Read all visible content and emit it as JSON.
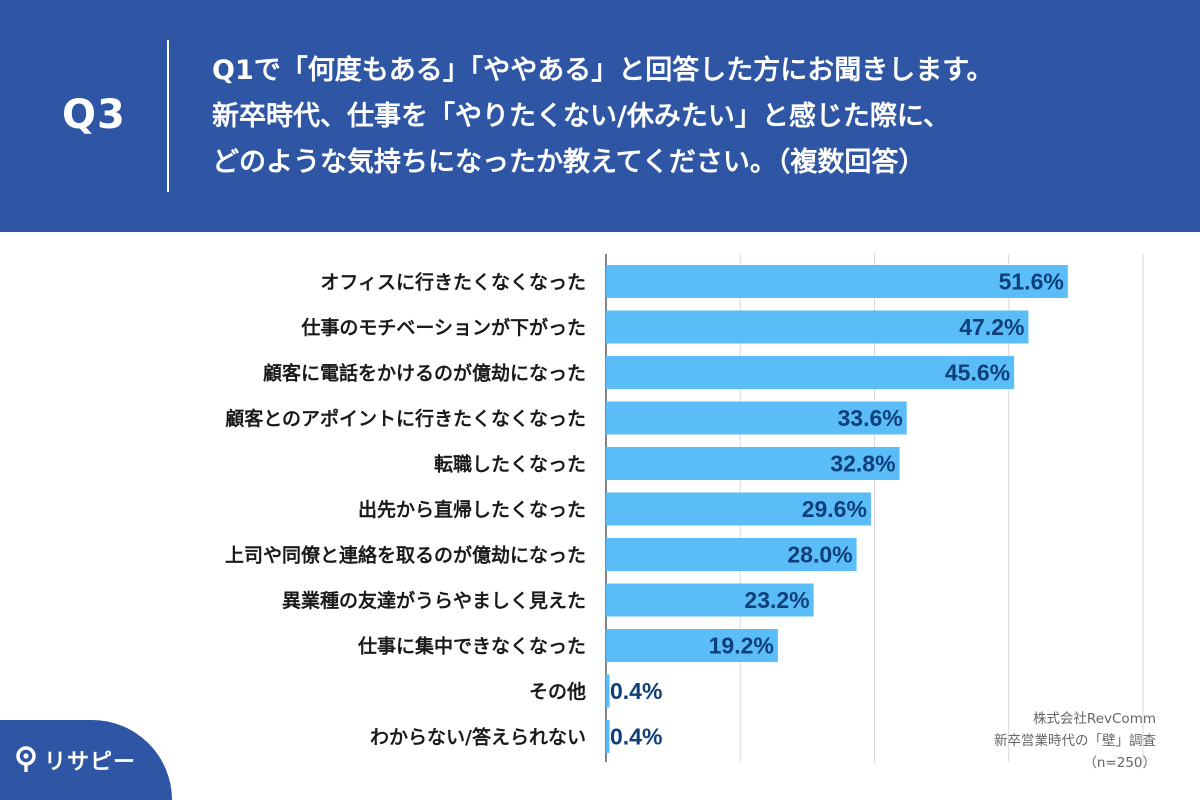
{
  "header": {
    "q_label": "Q3",
    "question_lines": [
      "Q1で「何度もある」「ややある」と回答した方にお聞きします。",
      "新卒時代、仕事を「やりたくない/休みたい」と感じた際に、",
      "どのような気持ちになったか教えてください。（複数回答）"
    ]
  },
  "chart_data": {
    "type": "bar",
    "orientation": "horizontal",
    "title": "",
    "xlabel": "",
    "ylabel": "",
    "xlim": [
      0,
      100
    ],
    "grid": true,
    "categories": [
      "オフィスに行きたくなくなった",
      "仕事のモチベーションが下がった",
      "顧客に電話をかけるのが億劫になった",
      "顧客とのアポイントに行きたくなくなった",
      "転職したくなった",
      "出先から直帰したくなった",
      "上司や同僚と連絡を取るのが億劫になった",
      "異業種の友達がうらやましく見えた",
      "仕事に集中できなくなった",
      "その他",
      "わからない/答えられない"
    ],
    "values": [
      51.6,
      47.2,
      45.6,
      33.6,
      32.8,
      29.6,
      28.0,
      23.2,
      19.2,
      0.4,
      0.4
    ],
    "value_labels": [
      "51.6%",
      "47.2%",
      "45.6%",
      "33.6%",
      "32.8%",
      "29.6%",
      "28.0%",
      "23.2%",
      "19.2%",
      "0.4%",
      "0.4%"
    ],
    "bar_color": "#5bbdf8"
  },
  "credit": {
    "company": "株式会社RevComm",
    "survey": "新卒営業時代の「壁」調査",
    "sample": "（n=250）"
  },
  "logo": {
    "text": "リサピー"
  },
  "colors": {
    "background": "#2f56a4",
    "bar": "#5bbdf8",
    "value_text": "#0f3f7a",
    "grid": "#d9d9d9"
  }
}
